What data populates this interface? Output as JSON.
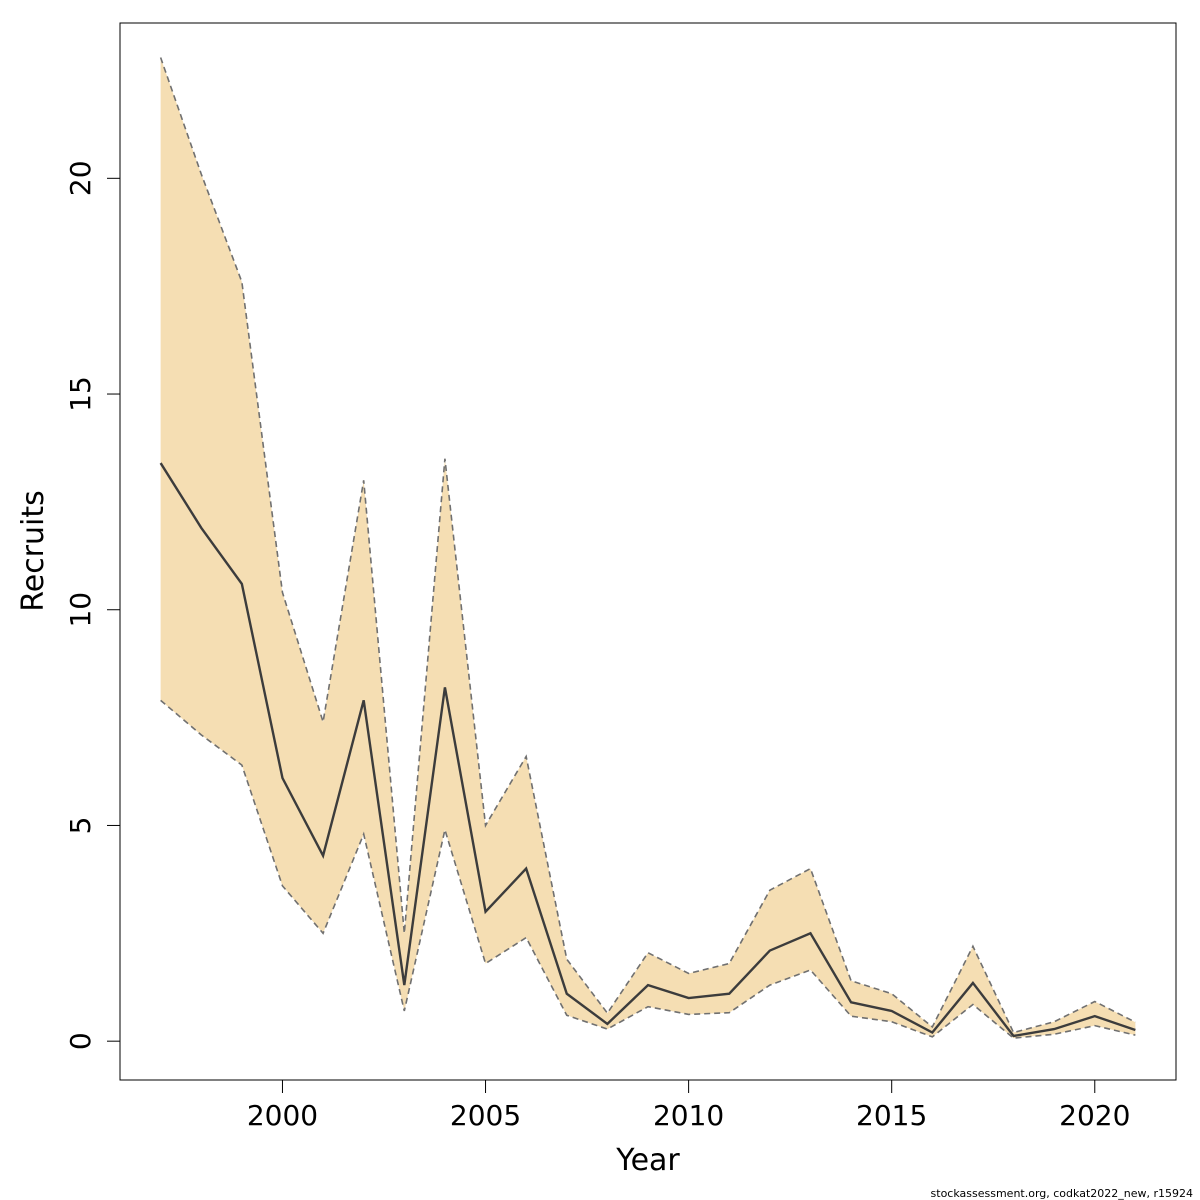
{
  "chart_data": {
    "type": "area",
    "xlabel": "Year",
    "ylabel": "Recruits",
    "xlim": [
      1996,
      2022
    ],
    "ylim": [
      -0.9,
      23.6
    ],
    "x_ticks": [
      2000,
      2005,
      2010,
      2015,
      2020
    ],
    "y_ticks": [
      0,
      5,
      10,
      15,
      20
    ],
    "grid": false,
    "x": [
      1997,
      1998,
      1999,
      2000,
      2001,
      2002,
      2003,
      2004,
      2005,
      2006,
      2007,
      2008,
      2009,
      2010,
      2011,
      2012,
      2013,
      2014,
      2015,
      2016,
      2017,
      2018,
      2019,
      2020,
      2021
    ],
    "series": [
      {
        "role": "estimate",
        "values": [
          13.4,
          11.9,
          10.6,
          6.1,
          4.3,
          7.9,
          1.3,
          8.2,
          3.0,
          4.0,
          1.1,
          0.4,
          1.3,
          1.0,
          1.1,
          2.1,
          2.5,
          0.9,
          0.7,
          0.2,
          1.35,
          0.12,
          0.28,
          0.58,
          0.26
        ]
      },
      {
        "role": "lower",
        "values": [
          7.9,
          7.1,
          6.4,
          3.6,
          2.5,
          4.8,
          0.7,
          4.9,
          1.8,
          2.4,
          0.6,
          0.28,
          0.8,
          0.62,
          0.66,
          1.3,
          1.65,
          0.58,
          0.45,
          0.1,
          0.85,
          0.07,
          0.16,
          0.36,
          0.14
        ]
      },
      {
        "role": "upper",
        "values": [
          22.8,
          20.1,
          17.6,
          10.4,
          7.4,
          13.0,
          2.5,
          13.5,
          5.0,
          6.6,
          1.9,
          0.65,
          2.05,
          1.57,
          1.8,
          3.5,
          4.0,
          1.4,
          1.1,
          0.33,
          2.2,
          0.2,
          0.45,
          0.92,
          0.44
        ]
      }
    ],
    "colors": {
      "band": "#f5deb3",
      "band_edge": "#707070",
      "line": "#3c3c3c"
    }
  },
  "footer": {
    "credit": "stockassessment.org, codkat2022_new, r15924"
  }
}
